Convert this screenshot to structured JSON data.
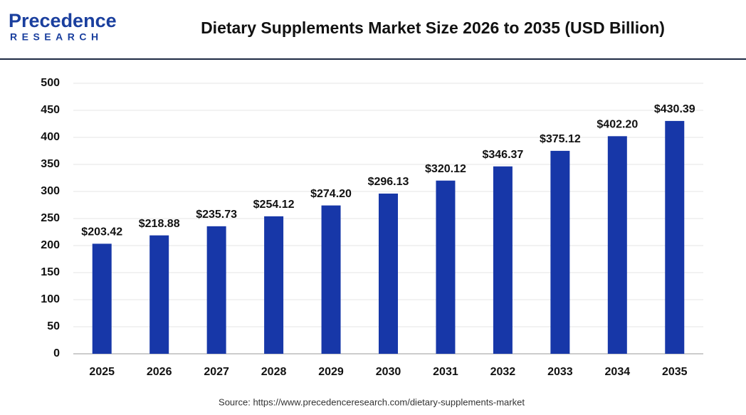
{
  "logo": {
    "name": "Precedence",
    "tagline": "RESEARCH"
  },
  "chart_data": {
    "type": "bar",
    "title": "Dietary Supplements Market Size 2026 to 2035 (USD Billion)",
    "source": "Source: https://www.precedenceresearch.com/dietary-supplements-market",
    "categories": [
      "2025",
      "2026",
      "2027",
      "2028",
      "2029",
      "2030",
      "2031",
      "2032",
      "2033",
      "2034",
      "2035"
    ],
    "values": [
      203.42,
      218.88,
      235.73,
      254.12,
      274.2,
      296.13,
      320.12,
      346.37,
      375.12,
      402.2,
      430.39
    ],
    "value_labels": [
      "$203.42",
      "$218.88",
      "$235.73",
      "$254.12",
      "$274.20",
      "$296.13",
      "$320.12",
      "$346.37",
      "$375.12",
      "$402.20",
      "$430.39"
    ],
    "color": "#1737a8",
    "ylim": [
      0,
      500
    ],
    "yticks": [
      0,
      50,
      100,
      150,
      200,
      250,
      300,
      350,
      400,
      450,
      500
    ],
    "grid": true
  }
}
